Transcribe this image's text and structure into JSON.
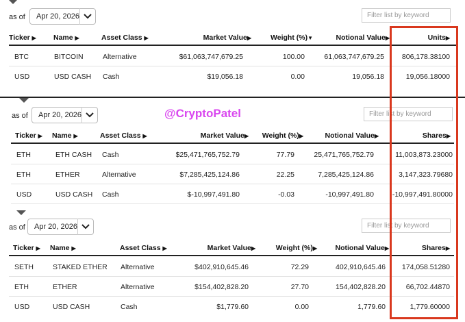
{
  "watermark": "@CryptoPatel",
  "sections": [
    {
      "asof_label": "as of",
      "date": "Apr 20, 2026",
      "filter_placeholder": "Filter list by keyword",
      "headers": {
        "ticker": "Ticker",
        "name": "Name",
        "asset_class": "Asset Class",
        "market_value": "Market Value",
        "weight": "Weight (%)",
        "notional_value": "Notional Value",
        "last": "Units"
      },
      "rows": [
        {
          "ticker": "BTC",
          "name": "BITCOIN",
          "asset_class": "Alternative",
          "market_value": "$61,063,747,679.25",
          "weight": "100.00",
          "notional_value": "61,063,747,679.25",
          "last": "806,178.38100"
        },
        {
          "ticker": "USD",
          "name": "USD CASH",
          "asset_class": "Cash",
          "market_value": "$19,056.18",
          "weight": "0.00",
          "notional_value": "19,056.18",
          "last": "19,056.18000"
        }
      ]
    },
    {
      "asof_label": "as of",
      "date": "Apr 20, 2026",
      "filter_placeholder": "Filter list by keyword",
      "headers": {
        "ticker": "Ticker",
        "name": "Name",
        "asset_class": "Asset Class",
        "market_value": "Market Value",
        "weight": "Weight (%)",
        "notional_value": "Notional Value",
        "last": "Shares"
      },
      "rows": [
        {
          "ticker": "ETH",
          "name": "ETH CASH",
          "asset_class": "Cash",
          "market_value": "$25,471,765,752.79",
          "weight": "77.79",
          "notional_value": "25,471,765,752.79",
          "last": "11,003,873.23000"
        },
        {
          "ticker": "ETH",
          "name": "ETHER",
          "asset_class": "Alternative",
          "market_value": "$7,285,425,124.86",
          "weight": "22.25",
          "notional_value": "7,285,425,124.86",
          "last": "3,147,323.79680"
        },
        {
          "ticker": "USD",
          "name": "USD CASH",
          "asset_class": "Cash",
          "market_value": "$-10,997,491.80",
          "weight": "-0.03",
          "notional_value": "-10,997,491.80",
          "last": "-10,997,491.80000"
        }
      ]
    },
    {
      "asof_label": "as of",
      "date": "Apr 20, 2026",
      "filter_placeholder": "Filter list by keyword",
      "headers": {
        "ticker": "Ticker",
        "name": "Name",
        "asset_class": "Asset Class",
        "market_value": "Market Value",
        "weight": "Weight (%)",
        "notional_value": "Notional Value",
        "last": "Shares"
      },
      "rows": [
        {
          "ticker": "SETH",
          "name": "STAKED ETHER",
          "asset_class": "Alternative",
          "market_value": "$402,910,645.46",
          "weight": "72.29",
          "notional_value": "402,910,645.46",
          "last": "174,058.51280"
        },
        {
          "ticker": "ETH",
          "name": "ETHER",
          "asset_class": "Alternative",
          "market_value": "$154,402,828.20",
          "weight": "27.70",
          "notional_value": "154,402,828.20",
          "last": "66,702.44870"
        },
        {
          "ticker": "USD",
          "name": "USD CASH",
          "asset_class": "Cash",
          "market_value": "$1,779.60",
          "weight": "0.00",
          "notional_value": "1,779.60",
          "last": "1,779.60000"
        }
      ]
    }
  ]
}
